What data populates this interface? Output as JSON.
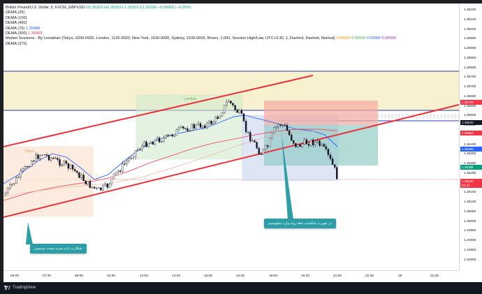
{
  "legend": {
    "title": "British Pound/U.S. Dollar, 5, FXCM_GBPUSD",
    "ohlc": "O1.35322 H1.35322 L1.35310 C1.35320 −0.00002 (−0.00%)",
    "lines": [
      {
        "label": "DEMA (25)",
        "value": ""
      },
      {
        "label": "DEMA (100)",
        "value": ""
      },
      {
        "label": "DEMA (400)",
        "value": ""
      },
      {
        "label": "DEMA (75)",
        "value": "1.35488"
      },
      {
        "label": "DEMA (300)",
        "value": "1.35569"
      }
    ],
    "sessions_text": "Market Sessions - By Leviathan (Tokyo, 0330-0930, London, 1130-2000, New York, 1630-0030, Sydney, 2100-0600, Boxes, 1,000, Session High/Low, UTC+3:30, 1, Dashed, Dashed, Normal)",
    "sessions_values": [
      "0.00000",
      "0.00000",
      "0.00000",
      "0.00000"
    ],
    "last_line": "DEMA (375)"
  },
  "session_labels": {
    "tokyo": "Tokyo",
    "london": "London"
  },
  "price_axis": {
    "ticks": [
      "1.36200",
      "1.36100",
      "1.36000",
      "1.35950",
      "1.35900",
      "1.35850",
      "1.35800",
      "1.35750",
      "1.35700",
      "1.35650",
      "1.35600",
      "1.35550",
      "1.35500",
      "1.35450",
      "1.35400",
      "1.35350",
      "1.35300",
      "1.35250",
      "1.35200",
      "1.35150",
      "1.35100",
      "1.35050",
      "1.35000",
      "1.34950",
      "1.34900",
      "1.34850",
      "1.34800"
    ],
    "labels": [
      {
        "text": "1.35736",
        "color": "#f23645"
      },
      {
        "text": "1.35620",
        "color": "#131722"
      },
      {
        "text": "1.35563",
        "color": "#f23645"
      },
      {
        "text": "1.35488",
        "color": "#2962ff"
      },
      {
        "text": "1.35388",
        "color": "#089981"
      },
      {
        "text": "1.35320",
        "color": "#f23645"
      },
      {
        "text": "02:41",
        "color": "#f23645"
      }
    ]
  },
  "time_axis": [
    "06:00",
    "07:30",
    "09:00",
    "10:30",
    "12:00",
    "13:30",
    "15:00",
    "16:30",
    "18:00",
    "19:30",
    "21:00",
    "22:30",
    "28",
    "01:30"
  ],
  "callouts": {
    "right": "در صورت شکست خط روند وارد مجلوسیم",
    "left": "شکارب داره میره سمت وسمین"
  },
  "branding": {
    "name": "TradingView"
  },
  "colors": {
    "up": "#089981",
    "down": "#f23645",
    "channel": "#e8313a",
    "level": "#2a3bb5"
  }
}
